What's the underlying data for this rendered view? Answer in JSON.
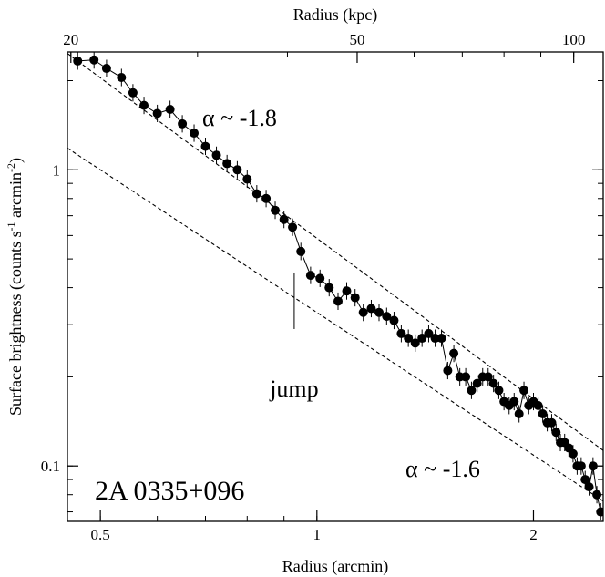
{
  "chart_data": {
    "type": "scatter",
    "xlabel": "Radius (arcmin)",
    "ylabel": "Surface brightness (counts s",
    "ylabel_sup1": "-1",
    "ylabel_mid": " arcmin",
    "ylabel_sup2": "-2",
    "ylabel_end": ")",
    "top_xlabel": "Radius (kpc)",
    "x_scale": "log",
    "y_scale": "log",
    "xlim": [
      0.45,
      2.5
    ],
    "ylim": [
      0.065,
      2.5
    ],
    "x_ticks": [
      {
        "value": 0.5,
        "label": "0.5"
      },
      {
        "value": 1,
        "label": "1"
      },
      {
        "value": 2,
        "label": "2"
      }
    ],
    "y_ticks": [
      {
        "value": 0.1,
        "label": "0.1"
      },
      {
        "value": 1,
        "label": "1"
      }
    ],
    "top_ticks": [
      {
        "value": 0.455,
        "label": "20"
      },
      {
        "value": 1.1375,
        "label": "50"
      },
      {
        "value": 2.275,
        "label": "100"
      }
    ],
    "series": [
      {
        "points": [
          [
            0.465,
            2.33
          ],
          [
            0.49,
            2.35
          ],
          [
            0.51,
            2.2
          ],
          [
            0.535,
            2.05
          ],
          [
            0.555,
            1.82
          ],
          [
            0.575,
            1.65
          ],
          [
            0.6,
            1.55
          ],
          [
            0.625,
            1.6
          ],
          [
            0.65,
            1.43
          ],
          [
            0.675,
            1.33
          ],
          [
            0.7,
            1.2
          ],
          [
            0.725,
            1.12
          ],
          [
            0.75,
            1.05
          ],
          [
            0.775,
            1.0
          ],
          [
            0.8,
            0.93
          ],
          [
            0.825,
            0.83
          ],
          [
            0.85,
            0.8
          ],
          [
            0.875,
            0.73
          ],
          [
            0.9,
            0.68
          ],
          [
            0.925,
            0.64
          ],
          [
            0.95,
            0.53
          ],
          [
            0.98,
            0.44
          ],
          [
            1.01,
            0.43
          ],
          [
            1.04,
            0.4
          ],
          [
            1.07,
            0.36
          ],
          [
            1.1,
            0.39
          ],
          [
            1.13,
            0.37
          ],
          [
            1.16,
            0.33
          ],
          [
            1.19,
            0.34
          ],
          [
            1.22,
            0.33
          ],
          [
            1.25,
            0.32
          ],
          [
            1.28,
            0.31
          ],
          [
            1.31,
            0.28
          ],
          [
            1.34,
            0.27
          ],
          [
            1.37,
            0.26
          ],
          [
            1.4,
            0.27
          ],
          [
            1.43,
            0.28
          ],
          [
            1.46,
            0.27
          ],
          [
            1.49,
            0.27
          ],
          [
            1.52,
            0.21
          ],
          [
            1.55,
            0.24
          ],
          [
            1.58,
            0.2
          ],
          [
            1.61,
            0.2
          ],
          [
            1.64,
            0.18
          ],
          [
            1.67,
            0.19
          ],
          [
            1.7,
            0.2
          ],
          [
            1.73,
            0.2
          ],
          [
            1.76,
            0.19
          ],
          [
            1.79,
            0.18
          ],
          [
            1.82,
            0.165
          ],
          [
            1.85,
            0.16
          ],
          [
            1.88,
            0.165
          ],
          [
            1.91,
            0.15
          ],
          [
            1.94,
            0.18
          ],
          [
            1.97,
            0.16
          ],
          [
            2.0,
            0.165
          ],
          [
            2.03,
            0.16
          ],
          [
            2.06,
            0.15
          ],
          [
            2.09,
            0.14
          ],
          [
            2.12,
            0.14
          ],
          [
            2.15,
            0.13
          ],
          [
            2.18,
            0.12
          ],
          [
            2.21,
            0.12
          ],
          [
            2.24,
            0.115
          ],
          [
            2.27,
            0.11
          ],
          [
            2.3,
            0.1
          ],
          [
            2.33,
            0.1
          ],
          [
            2.36,
            0.09
          ],
          [
            2.39,
            0.085
          ],
          [
            2.42,
            0.1
          ],
          [
            2.45,
            0.08
          ],
          [
            2.48,
            0.07
          ]
        ]
      }
    ],
    "reference_lines": [
      {
        "slope": -1.8,
        "x_range": [
          0.45,
          2.5
        ],
        "anchor": [
          0.465,
          2.33
        ]
      },
      {
        "slope": -1.6,
        "x_range": [
          0.45,
          2.5
        ],
        "anchor": [
          0.5,
          1.0
        ]
      }
    ],
    "annotations": {
      "alpha_upper": "α ~ -1.8",
      "alpha_lower": "α ~ -1.6",
      "jump_label": "jump",
      "jump_x": 0.93,
      "jump_y_range": [
        0.29,
        0.45
      ],
      "name": "2A 0335+096"
    }
  }
}
